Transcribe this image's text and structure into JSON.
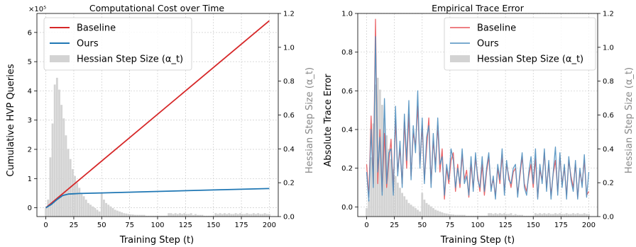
{
  "chart_data": [
    {
      "type": "line",
      "title": "Computational Cost over Time",
      "xlabel": "Training Step (t)",
      "ylabel": "Cumulative HVP Queries",
      "ylabel_right": "Hessian Step Size (α_t)",
      "y_multiplier_label": "×10⁵",
      "xlim": [
        -8,
        208
      ],
      "ylim": [
        -0.3,
        6.65
      ],
      "ylim_right": [
        0,
        1.2
      ],
      "x_ticks": [
        0,
        25,
        50,
        75,
        100,
        125,
        150,
        175,
        200
      ],
      "y_ticks": [
        0,
        1,
        2,
        3,
        4,
        5,
        6
      ],
      "y_ticks_right": [
        0.0,
        0.2,
        0.4,
        0.6,
        0.8,
        1.0,
        1.2
      ],
      "grid": true,
      "legend_position": "upper-left",
      "series": [
        {
          "name": "Baseline",
          "color": "#d62728",
          "x": [
            0,
            200
          ],
          "y": [
            0,
            6.4
          ]
        },
        {
          "name": "Ours",
          "color": "#1f77b4",
          "x": [
            0,
            5,
            10,
            15,
            20,
            25,
            30,
            50,
            100,
            150,
            200
          ],
          "y": [
            0,
            0.12,
            0.28,
            0.42,
            0.47,
            0.48,
            0.49,
            0.51,
            0.56,
            0.61,
            0.66
          ]
        }
      ],
      "hist_legend": "Hessian Step Size (α_t)"
    },
    {
      "type": "line",
      "title": "Empirical Trace Error",
      "xlabel": "Training Step (t)",
      "ylabel": "Absolute Trace Error",
      "ylabel_right": "Hessian Step Size (α_t)",
      "xlim": [
        -8,
        208
      ],
      "ylim": [
        -0.05,
        1.0
      ],
      "ylim_right": [
        0,
        1.2
      ],
      "x_ticks": [
        0,
        25,
        50,
        75,
        100,
        125,
        150,
        175,
        200
      ],
      "y_ticks": [
        0.0,
        0.2,
        0.4,
        0.6,
        0.8,
        1.0
      ],
      "y_ticks_right": [
        0.0,
        0.2,
        0.4,
        0.6,
        0.8,
        1.0,
        1.2
      ],
      "grid": true,
      "legend_position": "upper-right",
      "series": [
        {
          "name": "Baseline",
          "color": "#e8555a",
          "x": [
            0,
            2,
            4,
            6,
            8,
            10,
            12,
            14,
            16,
            18,
            20,
            22,
            24,
            26,
            28,
            30,
            32,
            34,
            36,
            38,
            40,
            42,
            44,
            46,
            48,
            50,
            52,
            54,
            56,
            58,
            60,
            62,
            64,
            66,
            68,
            70,
            72,
            74,
            76,
            78,
            80,
            82,
            84,
            86,
            88,
            90,
            92,
            94,
            96,
            98,
            100,
            102,
            104,
            106,
            108,
            110,
            112,
            114,
            116,
            118,
            120,
            122,
            124,
            126,
            128,
            130,
            132,
            134,
            136,
            138,
            140,
            142,
            144,
            146,
            148,
            150,
            152,
            154,
            156,
            158,
            160,
            162,
            164,
            166,
            168,
            170,
            172,
            174,
            176,
            178,
            180,
            182,
            184,
            186,
            188,
            190,
            192,
            194,
            196,
            198,
            200
          ],
          "y": [
            0.22,
            0.05,
            0.47,
            0.12,
            0.97,
            0.12,
            0.4,
            0.08,
            0.38,
            0.1,
            0.24,
            0.35,
            0.08,
            0.45,
            0.18,
            0.3,
            0.12,
            0.44,
            0.2,
            0.48,
            0.16,
            0.38,
            0.32,
            0.52,
            0.22,
            0.42,
            0.14,
            0.3,
            0.46,
            0.12,
            0.34,
            0.22,
            0.42,
            0.18,
            0.3,
            0.04,
            0.2,
            0.12,
            0.24,
            0.28,
            0.08,
            0.22,
            0.1,
            0.27,
            0.14,
            0.19,
            0.05,
            0.22,
            0.1,
            0.25,
            0.16,
            0.08,
            0.22,
            0.06,
            0.18,
            0.26,
            0.1,
            0.14,
            0.06,
            0.2,
            0.12,
            0.27,
            0.08,
            0.22,
            0.16,
            0.1,
            0.18,
            0.2,
            0.07,
            0.16,
            0.26,
            0.12,
            0.08,
            0.16,
            0.22,
            0.1,
            0.25,
            0.05,
            0.19,
            0.14,
            0.28,
            0.1,
            0.22,
            0.06,
            0.17,
            0.24,
            0.08,
            0.26,
            0.12,
            0.2,
            0.06,
            0.24,
            0.16,
            0.1,
            0.22,
            0.05,
            0.18,
            0.12,
            0.24,
            0.06,
            0.08
          ]
        },
        {
          "name": "Ours",
          "color": "#4f8fbf",
          "x": [
            0,
            2,
            4,
            6,
            8,
            10,
            12,
            14,
            16,
            18,
            20,
            22,
            24,
            26,
            28,
            30,
            32,
            34,
            36,
            38,
            40,
            42,
            44,
            46,
            48,
            50,
            52,
            54,
            56,
            58,
            60,
            62,
            64,
            66,
            68,
            70,
            72,
            74,
            76,
            78,
            80,
            82,
            84,
            86,
            88,
            90,
            92,
            94,
            96,
            98,
            100,
            102,
            104,
            106,
            108,
            110,
            112,
            114,
            116,
            118,
            120,
            122,
            124,
            126,
            128,
            130,
            132,
            134,
            136,
            138,
            140,
            142,
            144,
            146,
            148,
            150,
            152,
            154,
            156,
            158,
            160,
            162,
            164,
            166,
            168,
            170,
            172,
            174,
            176,
            178,
            180,
            182,
            184,
            186,
            188,
            190,
            192,
            194,
            196,
            198,
            200
          ],
          "y": [
            0.18,
            0.03,
            0.4,
            0.1,
            0.88,
            0.18,
            0.36,
            0.06,
            0.56,
            0.12,
            0.28,
            0.3,
            0.06,
            0.52,
            0.16,
            0.34,
            0.1,
            0.48,
            0.24,
            0.55,
            0.14,
            0.42,
            0.28,
            0.6,
            0.2,
            0.46,
            0.12,
            0.36,
            0.42,
            0.1,
            0.38,
            0.18,
            0.46,
            0.22,
            0.26,
            0.06,
            0.22,
            0.14,
            0.3,
            0.24,
            0.1,
            0.2,
            0.12,
            0.3,
            0.12,
            0.16,
            0.06,
            0.26,
            0.08,
            0.28,
            0.14,
            0.1,
            0.26,
            0.08,
            0.2,
            0.28,
            0.08,
            0.16,
            0.04,
            0.22,
            0.14,
            0.3,
            0.06,
            0.24,
            0.14,
            0.12,
            0.2,
            0.22,
            0.05,
            0.18,
            0.28,
            0.1,
            0.06,
            0.18,
            0.26,
            0.12,
            0.3,
            0.04,
            0.22,
            0.12,
            0.3,
            0.08,
            0.24,
            0.04,
            0.18,
            0.31,
            0.06,
            0.28,
            0.1,
            0.22,
            0.04,
            0.26,
            0.14,
            0.08,
            0.24,
            0.04,
            0.2,
            0.1,
            0.27,
            0.05,
            0.18
          ]
        }
      ],
      "hist_legend": "Hessian Step Size (α_t)"
    }
  ],
  "histogram": {
    "color": "#d3d3d3",
    "bin_width": 2,
    "x": [
      0,
      2,
      4,
      6,
      8,
      10,
      12,
      14,
      16,
      18,
      20,
      22,
      24,
      26,
      28,
      30,
      32,
      34,
      36,
      38,
      40,
      42,
      44,
      46,
      48,
      50,
      52,
      54,
      56,
      58,
      60,
      62,
      64,
      66,
      68,
      70,
      72,
      74,
      76,
      78,
      80,
      82,
      84,
      86,
      88,
      90,
      92,
      94,
      96,
      98,
      100,
      102,
      104,
      106,
      108,
      110,
      112,
      114,
      116,
      118,
      120,
      122,
      124,
      126,
      128,
      130,
      132,
      134,
      136,
      138,
      140,
      142,
      144,
      146,
      148,
      150,
      152,
      154,
      156,
      158,
      160,
      162,
      164,
      166,
      168,
      170,
      172,
      174,
      176,
      178,
      180,
      182,
      184,
      186,
      188,
      190,
      192,
      194,
      196,
      198,
      200
    ],
    "values": [
      0.05,
      0.1,
      0.35,
      0.55,
      0.78,
      0.82,
      0.75,
      0.66,
      0.58,
      0.48,
      0.4,
      0.34,
      0.28,
      0.24,
      0.2,
      0.17,
      0.14,
      0.12,
      0.1,
      0.08,
      0.07,
      0.06,
      0.05,
      0.04,
      0.03,
      0.14,
      0.1,
      0.08,
      0.07,
      0.06,
      0.05,
      0.04,
      0.035,
      0.03,
      0.025,
      0.02,
      0.018,
      0.015,
      0.013,
      0.012,
      0.01,
      0.01,
      0.01,
      0.01,
      0.01,
      0.005,
      0.005,
      0.005,
      0.005,
      0.005,
      0.005,
      0.005,
      0.005,
      0.005,
      0.005,
      0.02,
      0.02,
      0.015,
      0.02,
      0.015,
      0.02,
      0.015,
      0.02,
      0.015,
      0.015,
      0.02,
      0.01,
      0.015,
      0.01,
      0.01,
      0.01,
      0.005,
      0.005,
      0.005,
      0.005,
      0.005,
      0.02,
      0.015,
      0.02,
      0.015,
      0.02,
      0.015,
      0.02,
      0.015,
      0.015,
      0.02,
      0.015,
      0.02,
      0.015,
      0.015,
      0.02,
      0.015,
      0.015,
      0.02,
      0.015,
      0.02,
      0.015,
      0.015,
      0.02,
      0.015,
      0.015
    ]
  },
  "colors": {
    "axis": "#000000",
    "grid": "#cccccc",
    "right_axis_text": "#888888"
  }
}
